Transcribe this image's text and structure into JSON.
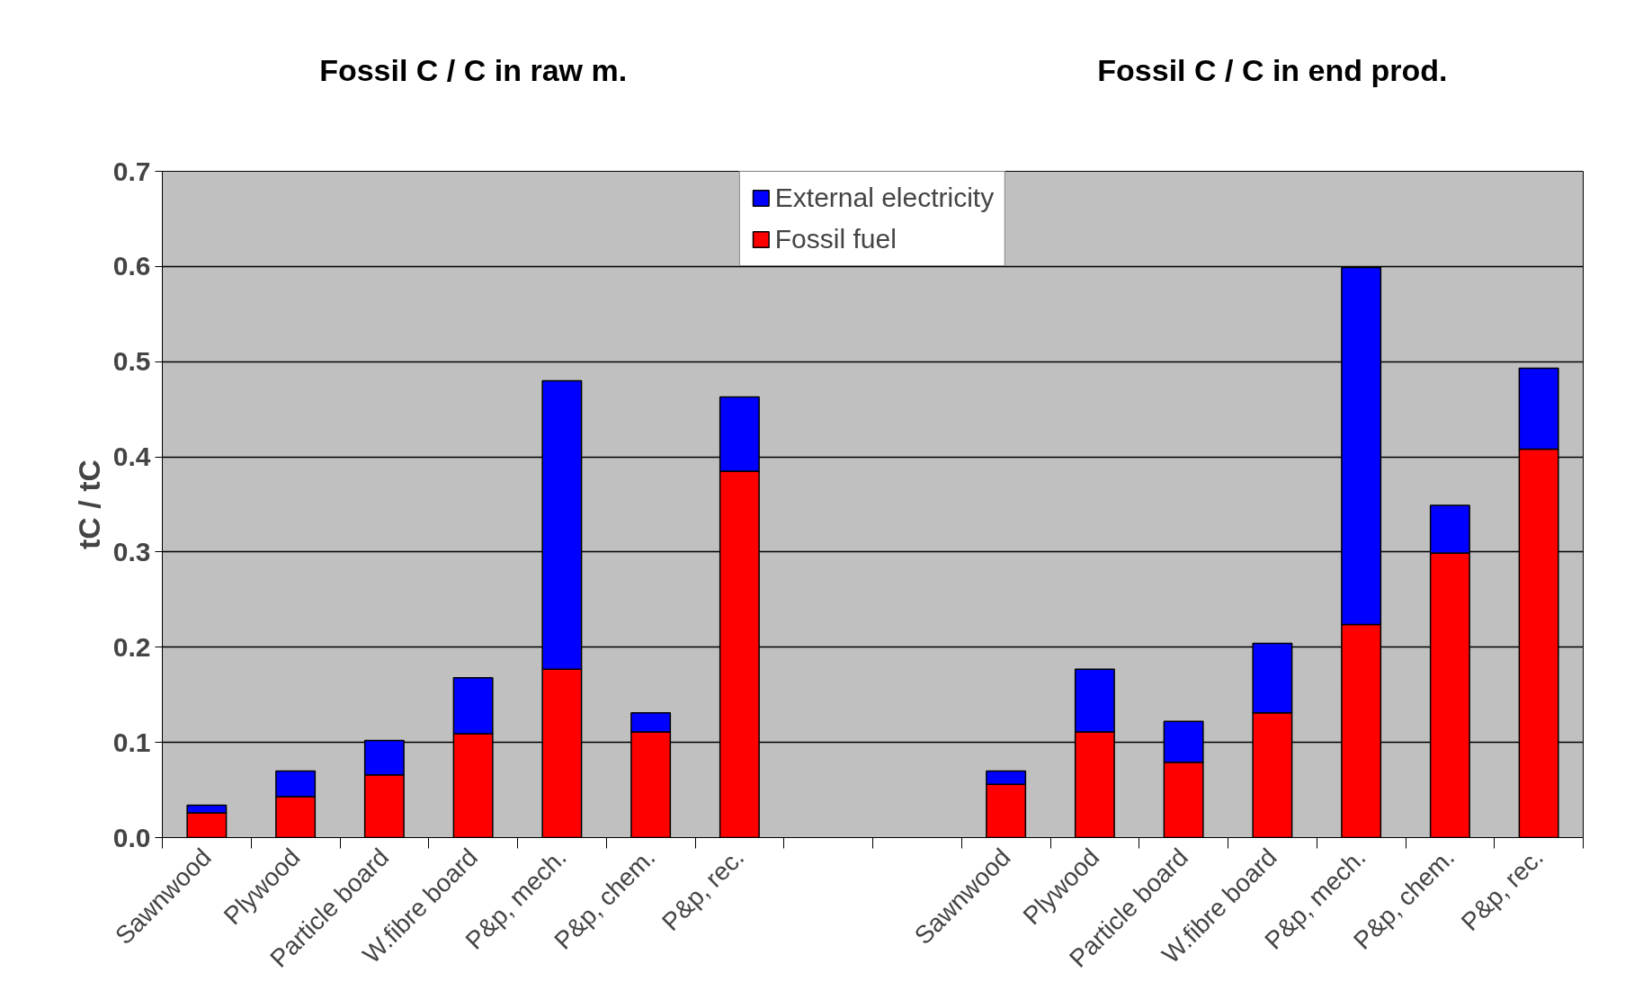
{
  "chart_data": {
    "type": "bar",
    "stacked": true,
    "ylabel": "tC / tC",
    "annotations": [
      "Fossil C / C in raw m.",
      "Fossil C / C in end prod."
    ],
    "categories": [
      "Sawnwood",
      "Plywood",
      "Particle board",
      "W.fibre board",
      "P&p, mech.",
      "P&p, chem.",
      "P&p, rec.",
      null,
      null,
      "Sawnwood",
      "Plywood",
      "Particle board",
      "W.fibre board",
      "P&p, mech.",
      "P&p, chem.",
      "P&p, rec."
    ],
    "series": [
      {
        "name": "Fossil fuel",
        "color": "#ff0000",
        "values": [
          0.026,
          0.043,
          0.066,
          0.109,
          0.177,
          0.111,
          0.385,
          null,
          null,
          0.056,
          0.111,
          0.079,
          0.131,
          0.224,
          0.299,
          0.408
        ]
      },
      {
        "name": "External electricity",
        "color": "#0000ff",
        "values": [
          0.008,
          0.027,
          0.036,
          0.059,
          0.303,
          0.02,
          0.078,
          null,
          null,
          0.014,
          0.066,
          0.043,
          0.073,
          0.375,
          0.05,
          0.085
        ]
      }
    ],
    "ylim": [
      0,
      0.7
    ],
    "yticks": [
      {
        "value": 0,
        "label": "0.0"
      },
      0.1,
      0.2,
      0.3,
      0.4,
      0.5,
      0.6,
      0.7
    ],
    "grid": "y",
    "legend": "top"
  }
}
